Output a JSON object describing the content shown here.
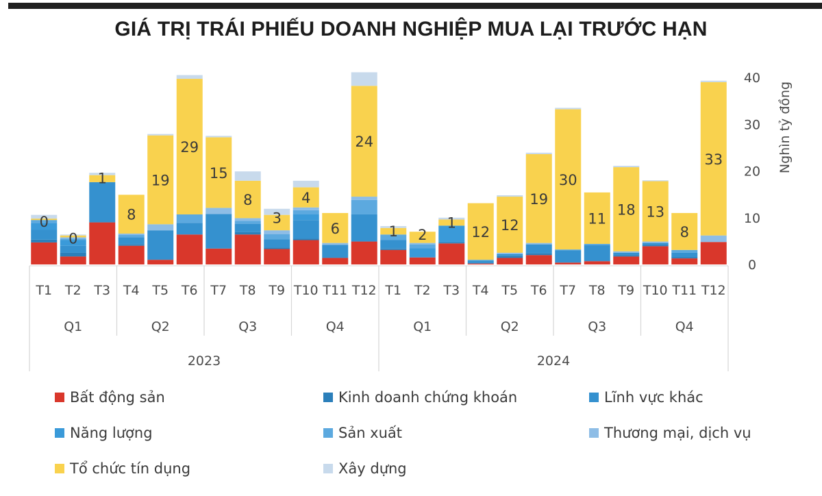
{
  "header": {
    "title": "GIÁ TRỊ TRÁI PHIẾU DOANH NGHIỆP MUA LẠI TRƯỚC HẠN"
  },
  "chart_data": {
    "type": "bar",
    "stacked": true,
    "title": "GIÁ TRỊ TRÁI PHIẾU DOANH NGHIỆP MUA LẠI TRƯỚC HẠN",
    "ylabel": "Nghìn tỷ đồng",
    "xlabel": "",
    "ylim": [
      0,
      40
    ],
    "yticks": [
      0,
      10,
      20,
      30,
      40
    ],
    "y_axis_side": "right",
    "grid": false,
    "legend_position": "bottom",
    "categories": [
      "T1",
      "T2",
      "T3",
      "T4",
      "T5",
      "T6",
      "T7",
      "T8",
      "T9",
      "T10",
      "T11",
      "T12",
      "T1",
      "T2",
      "T3",
      "T4",
      "T5",
      "T6",
      "T7",
      "T8",
      "T9",
      "T10",
      "T11",
      "T12"
    ],
    "quarters": [
      {
        "label": "Q1",
        "year": "2023"
      },
      {
        "label": "Q2",
        "year": "2023"
      },
      {
        "label": "Q3",
        "year": "2023"
      },
      {
        "label": "Q4",
        "year": "2023"
      },
      {
        "label": "Q1",
        "year": "2024"
      },
      {
        "label": "Q2",
        "year": "2024"
      },
      {
        "label": "Q3",
        "year": "2024"
      },
      {
        "label": "Q4",
        "year": "2024"
      }
    ],
    "years": [
      "2023",
      "2024"
    ],
    "series": [
      {
        "name": "Bất động sản",
        "color": "#d9372b",
        "values": [
          4.7,
          1.7,
          9.0,
          4.0,
          1.0,
          6.4,
          3.4,
          6.4,
          3.3,
          5.2,
          1.4,
          4.9,
          3.1,
          1.5,
          4.5,
          0.2,
          1.4,
          2.0,
          0.4,
          0.7,
          1.7,
          3.9,
          1.3,
          4.8
        ]
      },
      {
        "name": "Kinh doanh chứng khoán",
        "color": "#2b7fba",
        "values": [
          0.6,
          0.8,
          0.0,
          0.3,
          0.0,
          0.0,
          0.0,
          0.5,
          0.3,
          0.3,
          0.0,
          0.0,
          0.3,
          0.0,
          0.3,
          0.0,
          0.4,
          0.4,
          0.0,
          0.0,
          0.3,
          0.2,
          0.3,
          0.0
        ]
      },
      {
        "name": "Lĩnh vực khác",
        "color": "#3591cf",
        "values": [
          2.1,
          1.5,
          8.6,
          1.5,
          6.3,
          2.5,
          7.4,
          1.8,
          1.8,
          4.0,
          2.8,
          5.8,
          1.8,
          0.0,
          0.0,
          0.6,
          0.4,
          1.9,
          2.6,
          3.4,
          0.5,
          0.5,
          0.9,
          0.0
        ]
      },
      {
        "name": "Năng lượng",
        "color": "#3a9ad9",
        "values": [
          1.5,
          1.2,
          0.0,
          0.0,
          0.0,
          0.0,
          0.0,
          0.0,
          0.0,
          1.3,
          0.0,
          0.0,
          0.0,
          2.0,
          3.5,
          0.0,
          0.0,
          0.0,
          0.0,
          0.0,
          0.0,
          0.0,
          0.0,
          0.0
        ]
      },
      {
        "name": "Sản xuất",
        "color": "#5ca9df",
        "values": [
          0.6,
          0.3,
          0.0,
          0.5,
          0.0,
          1.8,
          0.0,
          0.6,
          1.1,
          0.8,
          0.0,
          3.1,
          1.2,
          0.8,
          0.0,
          0.2,
          0.0,
          0.0,
          0.2,
          0.3,
          0.0,
          0.0,
          0.6,
          0.0
        ]
      },
      {
        "name": "Thương mại, dịch vụ",
        "color": "#8ebde6",
        "values": [
          0.0,
          0.3,
          0.0,
          0.3,
          1.3,
          0.0,
          1.3,
          0.6,
          0.8,
          0.6,
          0.4,
          0.7,
          0.0,
          0.3,
          0.0,
          0.0,
          0.3,
          0.3,
          0.0,
          0.0,
          0.3,
          0.3,
          0.0,
          1.4
        ]
      },
      {
        "name": "Tổ chức tín dụng",
        "color": "#f9d24e",
        "values": [
          0.3,
          0.4,
          1.5,
          8.3,
          19.0,
          29.0,
          15.1,
          8.0,
          3.3,
          4.3,
          6.4,
          23.7,
          1.4,
          2.4,
          1.3,
          12.1,
          12.0,
          19.0,
          30.0,
          11.0,
          18.0,
          12.9,
          7.9,
          32.8
        ]
      },
      {
        "name": "Xây dựng",
        "color": "#c8daec",
        "values": [
          0.8,
          0.2,
          0.5,
          0.0,
          0.3,
          0.8,
          0.3,
          2.0,
          1.3,
          1.4,
          0.0,
          2.9,
          0.4,
          0.0,
          0.4,
          0.0,
          0.3,
          0.3,
          0.3,
          0.0,
          0.3,
          0.2,
          0.0,
          0.3
        ]
      }
    ],
    "data_labels": [
      "0",
      "0",
      "1",
      "8",
      "19",
      "29",
      "15",
      "8",
      "3",
      "4",
      "6",
      "24",
      "1",
      "2",
      "1",
      "12",
      "12",
      "19",
      "30",
      "11",
      "18",
      "13",
      "8",
      "33"
    ],
    "data_label_series": "Tổ chức tín dụng"
  },
  "legend": {
    "items": [
      {
        "label": "Bất động sản",
        "color": "#d9372b"
      },
      {
        "label": "Kinh doanh chứng khoán",
        "color": "#2b7fba"
      },
      {
        "label": "Lĩnh vực khác",
        "color": "#3591cf"
      },
      {
        "label": "Năng lượng",
        "color": "#3a9ad9"
      },
      {
        "label": "Sản xuất",
        "color": "#5ca9df"
      },
      {
        "label": "Thương mại, dịch vụ",
        "color": "#8ebde6"
      },
      {
        "label": "Tổ chức tín dụng",
        "color": "#f9d24e"
      },
      {
        "label": "Xây dựng",
        "color": "#c8daec"
      }
    ]
  }
}
